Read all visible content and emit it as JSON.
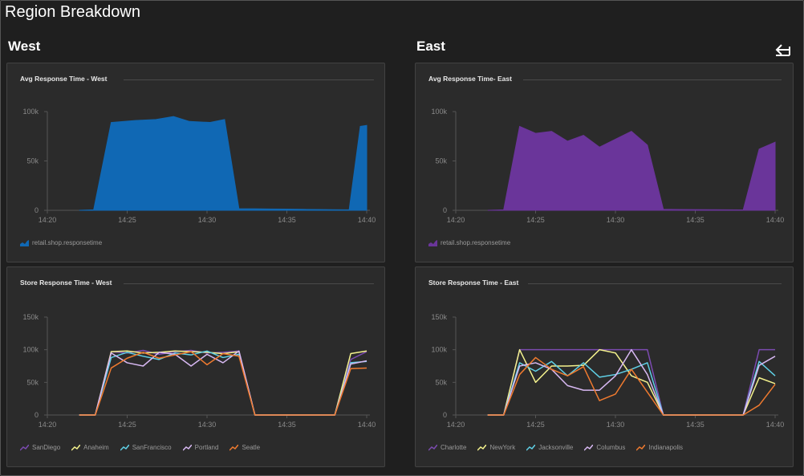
{
  "page": {
    "title": "Region Breakdown"
  },
  "regions": {
    "west": "West",
    "east": "East"
  },
  "icons": {
    "back": "collapse-left-arrow-icon"
  },
  "chart_data": [
    {
      "id": "avg_west",
      "type": "area",
      "title": "Avg Response Time - West",
      "x_ticks": [
        "14:20",
        "14:25",
        "14:30",
        "14:35",
        "14:40"
      ],
      "x_tick_values": [
        0,
        5,
        10,
        15,
        20
      ],
      "y_ticks": [
        "0",
        "50k",
        "100k"
      ],
      "y_tick_values": [
        0,
        50000,
        100000
      ],
      "ylim": [
        0,
        100000
      ],
      "xlim": [
        0,
        20.2
      ],
      "grid": false,
      "series": [
        {
          "name": "retail.shop.responsetime",
          "color": "#1068b4",
          "x": [
            2.0,
            2.9,
            4.0,
            5.5,
            6.8,
            7.9,
            8.9,
            10.2,
            11.1,
            12.0,
            13.0,
            14.0,
            15.0,
            16.0,
            17.0,
            18.0,
            18.9,
            19.6,
            20.0
          ],
          "y": [
            0,
            500,
            89000,
            91000,
            92000,
            95000,
            90000,
            89000,
            92000,
            1500,
            1500,
            1300,
            1200,
            1000,
            800,
            600,
            500,
            85000,
            86000
          ]
        }
      ]
    },
    {
      "id": "avg_east",
      "type": "area",
      "title": "Avg Response Time- East",
      "x_ticks": [
        "14:20",
        "14:25",
        "14:30",
        "14:35",
        "14:40"
      ],
      "x_tick_values": [
        0,
        5,
        10,
        15,
        20
      ],
      "y_ticks": [
        "0",
        "50k",
        "100k"
      ],
      "y_tick_values": [
        0,
        50000,
        100000
      ],
      "ylim": [
        0,
        100000
      ],
      "xlim": [
        0,
        20.2
      ],
      "grid": false,
      "series": [
        {
          "name": "retail.shop.responsetime",
          "color": "#6a359a",
          "x": [
            2.0,
            3.0,
            4.0,
            5.0,
            6.0,
            7.0,
            8.0,
            9.0,
            10.0,
            11.0,
            12.0,
            13.0,
            14.0,
            15.0,
            16.0,
            17.0,
            18.0,
            19.0,
            20.0
          ],
          "y": [
            0,
            500,
            85000,
            78000,
            80000,
            70000,
            76000,
            64000,
            72000,
            80000,
            66000,
            1000,
            800,
            700,
            600,
            500,
            400,
            62000,
            69000
          ]
        }
      ]
    },
    {
      "id": "store_west",
      "type": "line",
      "title": "Store Response Time - West",
      "x_ticks": [
        "14:20",
        "14:25",
        "14:30",
        "14:35",
        "14:40"
      ],
      "x_tick_values": [
        0,
        5,
        10,
        15,
        20
      ],
      "y_ticks": [
        "0",
        "50k",
        "100k",
        "150k"
      ],
      "y_tick_values": [
        0,
        50000,
        100000,
        150000
      ],
      "ylim": [
        0,
        150000
      ],
      "xlim": [
        0,
        20.2
      ],
      "grid": false,
      "x": [
        2.0,
        3.0,
        4.0,
        5.0,
        6.0,
        7.0,
        8.0,
        9.0,
        10.0,
        11.0,
        12.0,
        13.0,
        14.0,
        15.0,
        16.0,
        17.0,
        18.0,
        19.0,
        20.0
      ],
      "series": [
        {
          "name": "SanDiego",
          "color": "#7b4bb0",
          "values": [
            0,
            0,
            97000,
            95000,
            99000,
            93000,
            97000,
            99000,
            95000,
            96000,
            98000,
            0,
            0,
            0,
            0,
            0,
            0,
            85000,
            97000
          ]
        },
        {
          "name": "Anaheim",
          "color": "#f4f28d",
          "values": [
            0,
            0,
            97000,
            98000,
            95000,
            96000,
            98000,
            97000,
            96000,
            94000,
            97000,
            0,
            0,
            0,
            0,
            0,
            0,
            94000,
            98000
          ]
        },
        {
          "name": "SanFrancisco",
          "color": "#5fd0e6",
          "values": [
            0,
            0,
            88000,
            96000,
            90000,
            85000,
            95000,
            92000,
            98000,
            88000,
            93000,
            0,
            0,
            0,
            0,
            0,
            0,
            80000,
            82000
          ]
        },
        {
          "name": "Portland",
          "color": "#d7b8f2",
          "values": [
            0,
            0,
            95000,
            80000,
            75000,
            96000,
            93000,
            75000,
            93000,
            80000,
            98000,
            0,
            0,
            0,
            0,
            0,
            0,
            78000,
            83000
          ]
        },
        {
          "name": "Seatle",
          "color": "#ef7a2f",
          "values": [
            0,
            0,
            72000,
            87000,
            96000,
            87000,
            92000,
            97000,
            77000,
            94000,
            90000,
            0,
            0,
            0,
            0,
            0,
            0,
            71000,
            72000
          ]
        }
      ]
    },
    {
      "id": "store_east",
      "type": "line",
      "title": "Store Response Time - East",
      "x_ticks": [
        "14:20",
        "14:25",
        "14:30",
        "14:35",
        "14:40"
      ],
      "x_tick_values": [
        0,
        5,
        10,
        15,
        20
      ],
      "y_ticks": [
        "0",
        "50k",
        "100k",
        "150k"
      ],
      "y_tick_values": [
        0,
        50000,
        100000,
        150000
      ],
      "ylim": [
        0,
        150000
      ],
      "xlim": [
        0,
        20.2
      ],
      "grid": false,
      "x": [
        2.0,
        3.0,
        4.0,
        5.0,
        6.0,
        7.0,
        8.0,
        9.0,
        10.0,
        11.0,
        12.0,
        13.0,
        14.0,
        15.0,
        16.0,
        17.0,
        18.0,
        19.0,
        20.0
      ],
      "series": [
        {
          "name": "Charlotte",
          "color": "#7b4bb0",
          "values": [
            0,
            0,
            100000,
            100000,
            100000,
            100000,
            100000,
            100000,
            100000,
            100000,
            100000,
            0,
            0,
            0,
            0,
            0,
            0,
            100000,
            100000
          ]
        },
        {
          "name": "NewYork",
          "color": "#f4f28d",
          "values": [
            0,
            0,
            100000,
            50000,
            75000,
            75000,
            76000,
            100000,
            95000,
            60000,
            50000,
            0,
            0,
            0,
            0,
            0,
            0,
            57000,
            48000
          ]
        },
        {
          "name": "Jacksonville",
          "color": "#5fd0e6",
          "values": [
            0,
            0,
            80000,
            67000,
            82000,
            60000,
            80000,
            58000,
            62000,
            70000,
            80000,
            0,
            0,
            0,
            0,
            0,
            0,
            82000,
            60000
          ]
        },
        {
          "name": "Columbus",
          "color": "#d7b8f2",
          "values": [
            0,
            0,
            75000,
            80000,
            70000,
            45000,
            38000,
            38000,
            60000,
            100000,
            62000,
            0,
            0,
            0,
            0,
            0,
            0,
            76000,
            90000
          ]
        },
        {
          "name": "Indianapolis",
          "color": "#ef7a2f",
          "values": [
            0,
            0,
            62000,
            88000,
            70000,
            60000,
            74000,
            22000,
            32000,
            70000,
            35000,
            0,
            0,
            0,
            0,
            0,
            0,
            15000,
            47000
          ]
        }
      ]
    }
  ]
}
